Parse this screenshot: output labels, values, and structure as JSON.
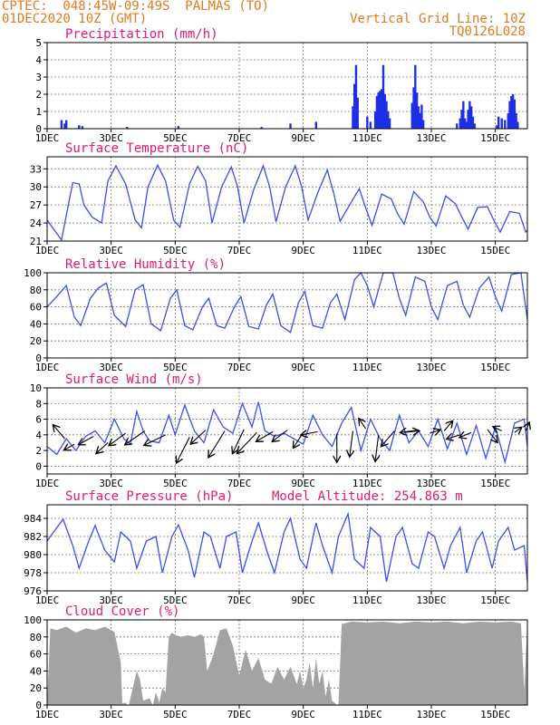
{
  "header": {
    "station_line": "CPTEC:  048:45W-09:49S  PALMAS (TO)",
    "date_line": "01DEC2020 10Z (GMT)",
    "grid_line": "Vertical Grid Line: 10Z",
    "code": "TQ0126L028"
  },
  "chart_data": [
    {
      "id": "precip",
      "type": "bar",
      "title": "Precipitation (mm/h)",
      "color": "#1e2ee8",
      "ylim": [
        0,
        5
      ],
      "yticks": [
        0,
        1,
        2,
        3,
        4,
        5
      ],
      "xlim": [
        0,
        15
      ],
      "xticks": [
        0,
        2,
        4,
        6,
        8,
        10,
        12,
        14
      ],
      "xlabels": [
        "1DEC",
        "3DEC",
        "5DEC",
        "7DEC",
        "9DEC",
        "11DEC",
        "13DEC",
        "15DEC"
      ],
      "grid": true,
      "x": [
        0.45,
        0.55,
        0.6,
        1.0,
        1.1,
        2.5,
        4.1,
        6.7,
        7.6,
        8.4,
        9.55,
        9.6,
        9.65,
        9.7,
        10.0,
        10.1,
        10.25,
        10.3,
        10.35,
        10.4,
        10.45,
        10.5,
        10.55,
        10.6,
        10.65,
        10.7,
        11.4,
        11.45,
        11.5,
        11.55,
        11.6,
        11.65,
        11.7,
        11.75,
        12.8,
        12.9,
        12.95,
        13.0,
        13.05,
        13.1,
        13.15,
        13.2,
        13.25,
        13.3,
        13.35,
        14.05,
        14.1,
        14.2,
        14.3,
        14.4,
        14.45,
        14.5,
        14.55,
        14.6,
        14.65,
        14.7
      ],
      "values": [
        0.5,
        0.3,
        0.5,
        0.2,
        0.15,
        0.1,
        0.15,
        0.1,
        0.3,
        0.4,
        1.3,
        2.6,
        3.7,
        1.8,
        0.7,
        0.4,
        1.0,
        1.9,
        2.1,
        2.2,
        2.3,
        3.7,
        2.0,
        1.6,
        1.0,
        0.6,
        1.5,
        2.4,
        3.7,
        2.1,
        1.3,
        0.9,
        1.4,
        0.5,
        0.3,
        0.6,
        1.1,
        1.6,
        0.6,
        0.4,
        1.1,
        1.6,
        1.3,
        0.7,
        0.3,
        0.2,
        0.7,
        0.6,
        0.5,
        0.9,
        1.6,
        1.9,
        2.0,
        1.7,
        0.9,
        0.4
      ]
    },
    {
      "id": "temp",
      "type": "line",
      "title": "Surface Temperature (nC)",
      "color": "#3b4ef0",
      "ylim": [
        21,
        35
      ],
      "yticks": [
        21,
        24,
        27,
        30,
        33
      ],
      "xlim": [
        0,
        15
      ],
      "xticks": [
        0,
        2,
        4,
        6,
        8,
        10,
        12,
        14
      ],
      "xlabels": [
        "1DEC",
        "3DEC",
        "5DEC",
        "7DEC",
        "9DEC",
        "11DEC",
        "13DEC",
        "15DEC"
      ],
      "grid": true,
      "x": [
        0,
        0.2,
        0.45,
        0.7,
        0.8,
        1.0,
        1.15,
        1.4,
        1.7,
        1.9,
        2.15,
        2.45,
        2.75,
        2.95,
        3.15,
        3.45,
        3.7,
        3.95,
        4.15,
        4.45,
        4.7,
        4.95,
        5.15,
        5.45,
        5.75,
        5.95,
        6.15,
        6.45,
        6.75,
        6.95,
        7.15,
        7.45,
        7.75,
        7.95,
        8.15,
        8.45,
        8.75,
        8.95,
        9.15,
        9.45,
        9.75,
        9.95,
        10.15,
        10.45,
        10.75,
        10.95,
        11.15,
        11.45,
        11.75,
        11.95,
        12.15,
        12.45,
        12.75,
        12.95,
        13.15,
        13.45,
        13.75,
        13.95,
        14.15,
        14.45,
        14.75,
        14.95,
        15.0
      ],
      "values": [
        24.5,
        23.0,
        21.2,
        28.0,
        30.7,
        30.5,
        27.0,
        25.0,
        24.0,
        31.0,
        33.5,
        30.5,
        24.5,
        23.2,
        30.0,
        33.6,
        31.0,
        24.5,
        23.3,
        30.5,
        33.4,
        31.0,
        24.0,
        30.0,
        33.3,
        30.0,
        24.0,
        29.5,
        33.5,
        30.0,
        24.2,
        30.0,
        33.5,
        30.0,
        24.5,
        29.0,
        32.8,
        29.0,
        24.3,
        27.0,
        29.7,
        26.5,
        23.6,
        28.8,
        28.0,
        25.5,
        23.8,
        29.2,
        27.5,
        25.0,
        23.5,
        28.5,
        27.2,
        25.0,
        23.0,
        26.6,
        26.7,
        24.5,
        22.5,
        25.9,
        25.6,
        22.5,
        22.8
      ]
    },
    {
      "id": "rh",
      "type": "line",
      "title": "Relative Humidity (%)",
      "color": "#3b4ef0",
      "ylim": [
        0,
        100
      ],
      "yticks": [
        0,
        20,
        40,
        60,
        80,
        100
      ],
      "xlim": [
        0,
        15
      ],
      "xticks": [
        0,
        2,
        4,
        6,
        8,
        10,
        12,
        14
      ],
      "xlabels": [
        "1DEC",
        "3DEC",
        "5DEC",
        "7DEC",
        "9DEC",
        "11DEC",
        "13DEC",
        "15DEC"
      ],
      "grid": true,
      "x": [
        0,
        0.3,
        0.6,
        0.85,
        1.05,
        1.35,
        1.6,
        1.85,
        2.1,
        2.45,
        2.75,
        3.0,
        3.25,
        3.55,
        3.85,
        4.05,
        4.3,
        4.55,
        4.85,
        5.05,
        5.3,
        5.55,
        5.85,
        6.05,
        6.3,
        6.6,
        6.85,
        7.05,
        7.3,
        7.6,
        7.85,
        8.05,
        8.3,
        8.6,
        8.85,
        9.05,
        9.3,
        9.6,
        9.8,
        10.0,
        10.2,
        10.5,
        10.8,
        11.0,
        11.2,
        11.5,
        11.8,
        12.0,
        12.2,
        12.5,
        12.8,
        13.0,
        13.2,
        13.5,
        13.8,
        14.0,
        14.2,
        14.5,
        14.8,
        15.0
      ],
      "values": [
        60,
        72,
        85,
        48,
        38,
        70,
        82,
        88,
        50,
        37,
        80,
        86,
        40,
        32,
        70,
        80,
        38,
        33,
        60,
        70,
        38,
        35,
        60,
        72,
        37,
        34,
        62,
        75,
        38,
        30,
        65,
        78,
        38,
        35,
        65,
        75,
        45,
        92,
        100,
        85,
        60,
        100,
        100,
        70,
        50,
        95,
        90,
        60,
        45,
        85,
        90,
        62,
        48,
        82,
        95,
        72,
        55,
        98,
        100,
        45
      ]
    },
    {
      "id": "wind",
      "type": "line",
      "title": "Surface Wind (m/s)",
      "color": "#3b4ef0",
      "ylim": [
        -1,
        10
      ],
      "yticks": [
        0,
        2,
        4,
        6,
        8,
        10
      ],
      "xlim": [
        0,
        15
      ],
      "xticks": [
        0,
        2,
        4,
        6,
        8,
        10,
        12,
        14
      ],
      "xlabels": [
        "1DEC",
        "3DEC",
        "5DEC",
        "7DEC",
        "9DEC",
        "11DEC",
        "13DEC",
        "15DEC"
      ],
      "grid": true,
      "x": [
        0,
        0.3,
        0.6,
        0.9,
        1.2,
        1.5,
        1.8,
        2.1,
        2.4,
        2.6,
        2.8,
        3.0,
        3.2,
        3.5,
        3.8,
        4.0,
        4.3,
        4.6,
        4.9,
        5.2,
        5.5,
        5.8,
        6.1,
        6.4,
        6.6,
        6.8,
        7.1,
        7.4,
        7.7,
        8.0,
        8.3,
        8.6,
        8.9,
        9.2,
        9.5,
        9.8,
        10.1,
        10.4,
        10.7,
        11.0,
        11.3,
        11.6,
        11.9,
        12.2,
        12.5,
        12.8,
        13.1,
        13.4,
        13.7,
        14.0,
        14.3,
        14.6,
        14.9,
        15.0
      ],
      "values": [
        2.5,
        1.5,
        3.5,
        2.0,
        3.8,
        4.5,
        3.0,
        6.0,
        3.5,
        2.8,
        7.0,
        4.5,
        3.2,
        3.0,
        6.5,
        4.0,
        7.8,
        4.5,
        3.0,
        7.2,
        5.0,
        4.2,
        8.0,
        5.0,
        8.2,
        4.5,
        3.8,
        4.2,
        3.5,
        2.8,
        6.5,
        4.0,
        2.5,
        5.5,
        7.5,
        2.0,
        6.0,
        3.5,
        2.0,
        6.5,
        3.0,
        4.5,
        2.5,
        6.0,
        2.2,
        5.5,
        1.5,
        5.2,
        1.0,
        5.0,
        0.5,
        5.5,
        6.0,
        2.5
      ],
      "arrows": [
        {
          "x": 0.55,
          "v": 3.5,
          "dx": -0.35,
          "dy": 1.7
        },
        {
          "x": 0.85,
          "v": 2.8,
          "dx": -0.3,
          "dy": -0.7
        },
        {
          "x": 1.45,
          "v": 3.8,
          "dx": -0.45,
          "dy": -1.0
        },
        {
          "x": 1.9,
          "v": 3.0,
          "dx": -0.35,
          "dy": -1.3
        },
        {
          "x": 2.45,
          "v": 4.2,
          "dx": -0.5,
          "dy": -1.5
        },
        {
          "x": 3.05,
          "v": 4.5,
          "dx": -0.6,
          "dy": -1.7
        },
        {
          "x": 3.7,
          "v": 4.0,
          "dx": -0.65,
          "dy": -1.3
        },
        {
          "x": 4.45,
          "v": 3.7,
          "dx": -0.4,
          "dy": -3.2
        },
        {
          "x": 4.95,
          "v": 4.6,
          "dx": -0.45,
          "dy": -1.7
        },
        {
          "x": 5.55,
          "v": 4.5,
          "dx": -0.5,
          "dy": -3.3
        },
        {
          "x": 6.15,
          "v": 4.7,
          "dx": -0.35,
          "dy": -3.0
        },
        {
          "x": 6.55,
          "v": 4.3,
          "dx": -0.6,
          "dy": -2.6
        },
        {
          "x": 7.05,
          "v": 4.4,
          "dx": -0.5,
          "dy": -1.2
        },
        {
          "x": 7.5,
          "v": 4.6,
          "dx": -0.45,
          "dy": -1.4
        },
        {
          "x": 7.95,
          "v": 4.0,
          "dx": -0.25,
          "dy": -1.6
        },
        {
          "x": 8.45,
          "v": 4.4,
          "dx": -0.5,
          "dy": -0.4
        },
        {
          "x": 9.05,
          "v": 4.2,
          "dx": 0.0,
          "dy": -3.6
        },
        {
          "x": 9.55,
          "v": 4.5,
          "dx": -0.1,
          "dy": -3.2
        },
        {
          "x": 9.95,
          "v": 4.8,
          "dx": -0.2,
          "dy": 1.2
        },
        {
          "x": 10.35,
          "v": 4.0,
          "dx": -0.1,
          "dy": -3.3
        },
        {
          "x": 10.85,
          "v": 4.5,
          "dx": -0.4,
          "dy": -1.9
        },
        {
          "x": 11.15,
          "v": 4.3,
          "dx": 0.45,
          "dy": 0.2
        },
        {
          "x": 11.55,
          "v": 4.6,
          "dx": -0.5,
          "dy": -0.3
        },
        {
          "x": 11.95,
          "v": 4.2,
          "dx": 0.3,
          "dy": 0.4
        },
        {
          "x": 12.4,
          "v": 4.5,
          "dx": 0.25,
          "dy": 1.2
        },
        {
          "x": 12.9,
          "v": 4.0,
          "dx": -0.4,
          "dy": -0.5
        },
        {
          "x": 13.25,
          "v": 4.3,
          "dx": -0.35,
          "dy": -0.6
        },
        {
          "x": 13.75,
          "v": 4.7,
          "dx": 0.3,
          "dy": -1.6
        },
        {
          "x": 14.2,
          "v": 4.5,
          "dx": -0.25,
          "dy": 0.5
        },
        {
          "x": 14.6,
          "v": 4.3,
          "dx": 0.2,
          "dy": 0.6
        },
        {
          "x": 14.95,
          "v": 4.5,
          "dx": 0.1,
          "dy": 1.0
        }
      ]
    },
    {
      "id": "pressure",
      "type": "line",
      "title": "Surface Pressure (hPa)",
      "annotation": "Model Altitude: 254.863 m",
      "color": "#3b4ef0",
      "ylim": [
        976,
        985.5
      ],
      "yticks": [
        976,
        978,
        980,
        982,
        984
      ],
      "xlim": [
        0,
        15
      ],
      "xticks": [
        0,
        2,
        4,
        6,
        8,
        10,
        12,
        14
      ],
      "xlabels": [
        "1DEC",
        "3DEC",
        "5DEC",
        "7DEC",
        "9DEC",
        "11DEC",
        "13DEC",
        "15DEC"
      ],
      "grid": true,
      "x": [
        0,
        0.2,
        0.5,
        0.8,
        1.0,
        1.3,
        1.5,
        1.8,
        2.1,
        2.3,
        2.6,
        2.8,
        3.1,
        3.4,
        3.6,
        3.9,
        4.1,
        4.4,
        4.6,
        4.9,
        5.1,
        5.4,
        5.6,
        5.9,
        6.1,
        6.4,
        6.6,
        6.9,
        7.1,
        7.4,
        7.6,
        7.9,
        8.1,
        8.4,
        8.6,
        8.9,
        9.1,
        9.4,
        9.6,
        9.9,
        10.1,
        10.4,
        10.6,
        10.9,
        11.1,
        11.4,
        11.6,
        11.9,
        12.1,
        12.4,
        12.6,
        12.9,
        13.1,
        13.4,
        13.6,
        13.9,
        14.1,
        14.4,
        14.6,
        14.9,
        15.0
      ],
      "values": [
        981.5,
        982.5,
        983.9,
        981.0,
        978.5,
        981.5,
        983.2,
        980.5,
        979.2,
        982.5,
        981.5,
        978.5,
        981.5,
        982.0,
        978.0,
        982.0,
        983.3,
        980.5,
        977.5,
        982.5,
        982.0,
        978.5,
        982.0,
        982.5,
        978.0,
        981.5,
        983.5,
        980.0,
        978.0,
        982.5,
        984.0,
        979.5,
        978.5,
        983.5,
        981.0,
        978.0,
        982.0,
        984.5,
        979.5,
        978.5,
        983.0,
        982.0,
        977.0,
        982.0,
        983.0,
        979.0,
        978.5,
        982.5,
        982.0,
        978.5,
        981.0,
        983.0,
        978.0,
        981.5,
        982.5,
        978.5,
        981.5,
        983.0,
        980.5,
        981.0,
        977.0
      ]
    },
    {
      "id": "cloud",
      "type": "area",
      "title": "Cloud Cover (%)",
      "color": "#a3a3a3",
      "ylim": [
        0,
        100
      ],
      "yticks": [
        0,
        20,
        40,
        60,
        80,
        100
      ],
      "xlim": [
        0,
        15
      ],
      "xticks": [
        0,
        2,
        4,
        6,
        8,
        10,
        12,
        14
      ],
      "xlabels": [
        "1DEC",
        "3DEC",
        "5DEC",
        "7DEC",
        "9DEC",
        "11DEC",
        "13DEC",
        "15DEC"
      ],
      "grid": true,
      "x": [
        0,
        0.1,
        0.3,
        0.6,
        0.9,
        1.2,
        1.5,
        1.8,
        2.1,
        2.3,
        2.35,
        2.45,
        2.5,
        2.55,
        2.8,
        2.9,
        3.0,
        3.2,
        3.3,
        3.4,
        3.5,
        3.6,
        3.7,
        3.8,
        3.9,
        4.0,
        4.2,
        4.4,
        4.6,
        4.8,
        4.9,
        5.0,
        5.2,
        5.4,
        5.6,
        5.8,
        6.0,
        6.2,
        6.4,
        6.6,
        6.8,
        7.0,
        7.2,
        7.4,
        7.6,
        7.8,
        7.9,
        8.0,
        8.1,
        8.2,
        8.3,
        8.4,
        8.5,
        8.6,
        8.7,
        8.8,
        8.9,
        9.0,
        9.05,
        9.1,
        9.2,
        9.5,
        10.0,
        10.5,
        11.0,
        11.5,
        12.0,
        12.5,
        13.0,
        13.5,
        14.0,
        14.5,
        14.8,
        14.9,
        15.0
      ],
      "values": [
        0,
        90,
        88,
        92,
        85,
        90,
        88,
        92,
        86,
        50,
        2,
        3,
        0,
        0,
        40,
        30,
        5,
        8,
        0,
        15,
        3,
        20,
        15,
        80,
        85,
        82,
        80,
        82,
        80,
        83,
        80,
        40,
        60,
        88,
        90,
        70,
        35,
        65,
        40,
        55,
        30,
        25,
        45,
        30,
        45,
        25,
        40,
        20,
        30,
        50,
        20,
        55,
        25,
        40,
        10,
        30,
        5,
        2,
        0,
        0,
        95,
        98,
        97,
        98,
        96,
        98,
        97,
        98,
        96,
        98,
        97,
        98,
        96,
        18,
        96
      ]
    }
  ]
}
